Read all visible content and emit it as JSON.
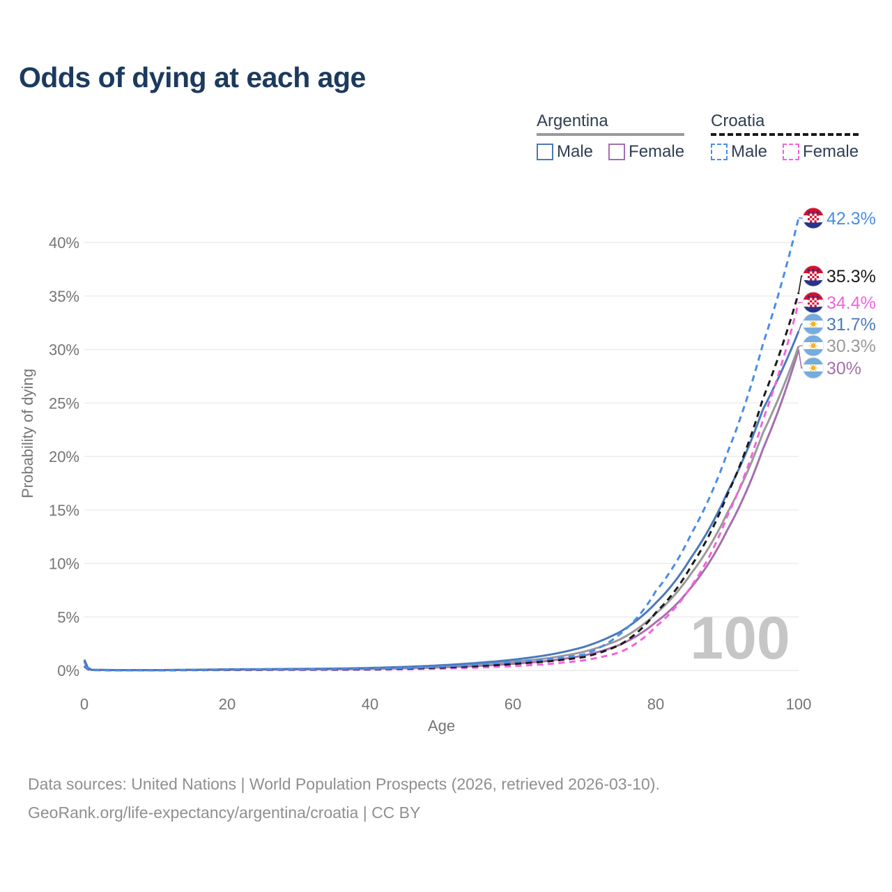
{
  "page": {
    "title": "Odds of dying at each age"
  },
  "legend": {
    "groups": [
      {
        "label": "Argentina",
        "underline_series": "argentina-all",
        "items": [
          {
            "label": "Male",
            "series": "argentina-male"
          },
          {
            "label": "Female",
            "series": "argentina-female"
          }
        ]
      },
      {
        "label": "Croatia",
        "underline_series": "croatia-all",
        "items": [
          {
            "label": "Male",
            "series": "croatia-male"
          },
          {
            "label": "Female",
            "series": "croatia-female"
          }
        ]
      }
    ]
  },
  "chart_data": {
    "type": "line",
    "title": "Odds of dying at each age",
    "xlabel": "Age",
    "ylabel": "Probability of dying",
    "xlim": [
      0,
      100
    ],
    "ylim_pct": [
      0,
      44
    ],
    "grid": "horizontal",
    "x_ticks": [
      0,
      20,
      40,
      60,
      80,
      100
    ],
    "y_ticks_pct": [
      0,
      5,
      10,
      15,
      20,
      25,
      30,
      35,
      40
    ],
    "y_tick_labels": [
      "0%",
      "5%",
      "10%",
      "15%",
      "20%",
      "25%",
      "30%",
      "35%",
      "40%"
    ],
    "watermark": "100",
    "ages": [
      0,
      1,
      5,
      10,
      15,
      20,
      25,
      30,
      35,
      40,
      45,
      50,
      55,
      60,
      65,
      70,
      75,
      80,
      85,
      90,
      95,
      100
    ],
    "series": [
      {
        "id": "croatia-male",
        "name": "Croatia Male",
        "country": "croatia",
        "sex": "male",
        "color": "#4a8de8",
        "dashed": true,
        "end_label": "42.3%",
        "end_value_pct": 42.3,
        "values_pct": [
          0.45,
          0.04,
          0.02,
          0.02,
          0.04,
          0.07,
          0.08,
          0.09,
          0.11,
          0.15,
          0.22,
          0.35,
          0.55,
          0.8,
          1.05,
          1.5,
          3.4,
          7.4,
          12.8,
          20.3,
          30.5,
          42.3
        ]
      },
      {
        "id": "croatia-all",
        "name": "Croatia (both sexes)",
        "country": "croatia",
        "sex": "all",
        "color": "#1a1a1a",
        "dashed": true,
        "end_label": "35.3%",
        "end_value_pct": 35.3,
        "values_pct": [
          0.4,
          0.035,
          0.015,
          0.015,
          0.03,
          0.05,
          0.06,
          0.07,
          0.08,
          0.11,
          0.17,
          0.26,
          0.4,
          0.6,
          0.85,
          1.25,
          2.4,
          5.4,
          9.8,
          16.4,
          25.4,
          35.3
        ]
      },
      {
        "id": "croatia-female",
        "name": "Croatia Female",
        "country": "croatia",
        "sex": "female",
        "color": "#f562de",
        "dashed": true,
        "end_label": "34.4%",
        "end_value_pct": 34.4,
        "values_pct": [
          0.35,
          0.03,
          0.012,
          0.012,
          0.02,
          0.03,
          0.035,
          0.04,
          0.05,
          0.07,
          0.11,
          0.17,
          0.26,
          0.4,
          0.6,
          0.95,
          1.7,
          4.1,
          7.9,
          14.4,
          23.4,
          34.4
        ]
      },
      {
        "id": "argentina-male",
        "name": "Argentina Male",
        "country": "argentina",
        "sex": "male",
        "color": "#4b79bb",
        "dashed": false,
        "end_label": "31.7%",
        "end_value_pct": 31.7,
        "values_pct": [
          1.0,
          0.06,
          0.03,
          0.03,
          0.06,
          0.1,
          0.12,
          0.14,
          0.17,
          0.23,
          0.33,
          0.48,
          0.7,
          1.0,
          1.45,
          2.2,
          3.6,
          6.3,
          10.6,
          16.6,
          24.4,
          31.7
        ]
      },
      {
        "id": "argentina-all",
        "name": "Argentina (both sexes)",
        "country": "argentina",
        "sex": "all",
        "color": "#9a9a9a",
        "dashed": false,
        "end_label": "30.3%",
        "end_value_pct": 30.3,
        "values_pct": [
          0.9,
          0.05,
          0.025,
          0.025,
          0.05,
          0.08,
          0.1,
          0.11,
          0.14,
          0.18,
          0.26,
          0.38,
          0.55,
          0.8,
          1.15,
          1.75,
          2.9,
          5.3,
          9.1,
          14.7,
          22.2,
          30.3
        ]
      },
      {
        "id": "argentina-female",
        "name": "Argentina Female",
        "country": "argentina",
        "sex": "female",
        "color": "#a46fae",
        "dashed": false,
        "end_label": "30%",
        "end_value_pct": 30.0,
        "values_pct": [
          0.8,
          0.045,
          0.02,
          0.02,
          0.04,
          0.06,
          0.07,
          0.09,
          0.11,
          0.14,
          0.2,
          0.29,
          0.42,
          0.62,
          0.9,
          1.4,
          2.4,
          4.5,
          7.8,
          13.1,
          20.7,
          30.0
        ]
      }
    ],
    "colors": {
      "title": "#1c3a5e",
      "axis_text": "#757575",
      "gridline": "#ececec",
      "watermark": "#c6c6c6",
      "legend_text": "#2f3e53",
      "footer_text": "#8f8f8f",
      "flag_argentina_blue": "#74acdf",
      "flag_argentina_sun": "#f5b32a",
      "flag_croatia_red": "#d80f2f",
      "flag_croatia_blue": "#26358c"
    }
  },
  "footer": {
    "line1": "Data sources: United Nations | World Population Prospects (2026, retrieved 2026-03-10).",
    "line2": "GeoRank.org/life-expectancy/argentina/croatia | CC BY"
  }
}
